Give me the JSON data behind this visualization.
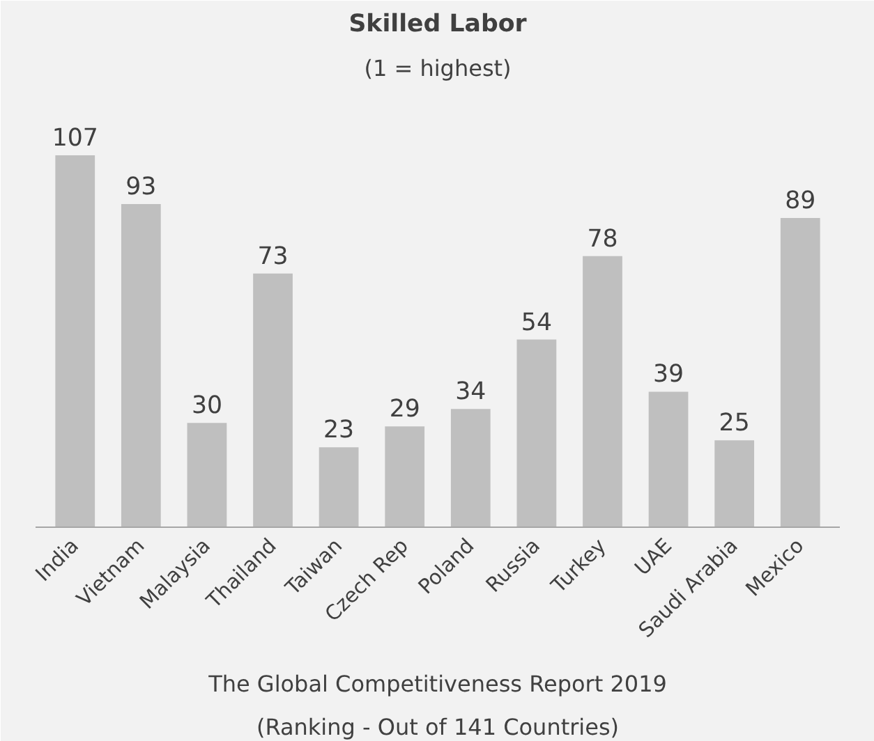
{
  "chart_data": {
    "type": "bar",
    "title": "Skilled Labor",
    "subtitle": "(1 = highest)",
    "categories": [
      "India",
      "Vietnam",
      "Malaysia",
      "Thailand",
      "Taiwan",
      "Czech Rep",
      "Poland",
      "Russia",
      "Turkey",
      "UAE",
      "Saudi Arabia",
      "Mexico"
    ],
    "values": [
      107,
      93,
      30,
      73,
      23,
      29,
      34,
      54,
      78,
      39,
      25,
      89
    ],
    "color": "#bfbfbf",
    "data_labels": true,
    "annotations": [
      "The Global Competitiveness Report 2019",
      "(Ranking - Out of 141 Countries)"
    ]
  }
}
